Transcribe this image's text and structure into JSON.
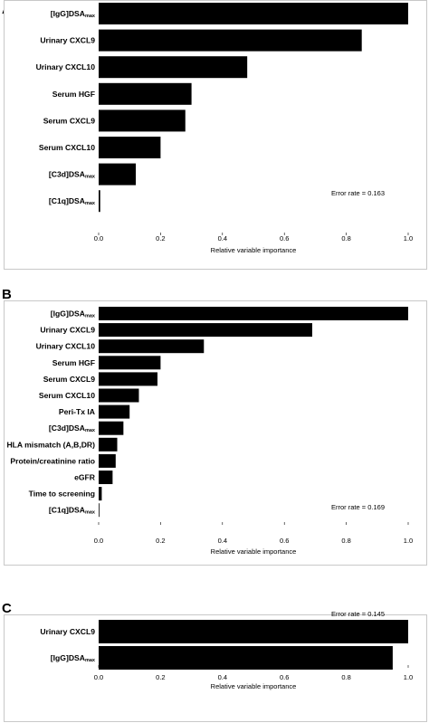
{
  "chart_data": [
    {
      "panel": "A",
      "type": "bar",
      "orientation": "horizontal",
      "categories": [
        {
          "main": "[IgG]DSA",
          "sub": "max"
        },
        {
          "main": "Urinary CXCL9",
          "sub": ""
        },
        {
          "main": "Urinary CXCL10",
          "sub": ""
        },
        {
          "main": "Serum HGF",
          "sub": ""
        },
        {
          "main": "Serum CXCL9",
          "sub": ""
        },
        {
          "main": "Serum CXCL10",
          "sub": ""
        },
        {
          "main": "[C3d]DSA",
          "sub": "max"
        },
        {
          "main": "[C1q]DSA",
          "sub": "max"
        }
      ],
      "values": [
        1.0,
        0.85,
        0.48,
        0.3,
        0.28,
        0.2,
        0.12,
        0.005
      ],
      "xlabel": "Relative variable importance",
      "xlim": [
        0,
        1
      ],
      "xticks": [
        "0.0",
        "0.2",
        "0.4",
        "0.6",
        "0.8",
        "1.0"
      ],
      "annotation": "Error rate = 0.163",
      "color": "#000000"
    },
    {
      "panel": "B",
      "type": "bar",
      "orientation": "horizontal",
      "categories": [
        {
          "main": "[IgG]DSA",
          "sub": "max"
        },
        {
          "main": "Urinary CXCL9",
          "sub": ""
        },
        {
          "main": "Urinary CXCL10",
          "sub": ""
        },
        {
          "main": "Serum HGF",
          "sub": ""
        },
        {
          "main": "Serum CXCL9",
          "sub": ""
        },
        {
          "main": "Serum CXCL10",
          "sub": ""
        },
        {
          "main": "Peri-Tx IA",
          "sub": ""
        },
        {
          "main": "[C3d]DSA",
          "sub": "max"
        },
        {
          "main": "HLA mismatch (A,B,DR)",
          "sub": ""
        },
        {
          "main": "Protein/creatinine ratio",
          "sub": ""
        },
        {
          "main": "eGFR",
          "sub": ""
        },
        {
          "main": "Time to screening",
          "sub": ""
        },
        {
          "main": "[C1q]DSA",
          "sub": "max"
        }
      ],
      "values": [
        1.0,
        0.69,
        0.34,
        0.2,
        0.19,
        0.13,
        0.1,
        0.08,
        0.06,
        0.055,
        0.045,
        0.01,
        0.002
      ],
      "xlabel": "Relative variable importance",
      "xlim": [
        0,
        1
      ],
      "xticks": [
        "0.0",
        "0.2",
        "0.4",
        "0.6",
        "0.8",
        "1.0"
      ],
      "annotation": "Error rate = 0.169",
      "color": "#000000"
    },
    {
      "panel": "C",
      "type": "bar",
      "orientation": "horizontal",
      "categories": [
        {
          "main": "Urinary CXCL9",
          "sub": ""
        },
        {
          "main": "[IgG]DSA",
          "sub": "max"
        }
      ],
      "values": [
        1.0,
        0.95
      ],
      "xlabel": "Relative variable importance",
      "xlim": [
        0,
        1
      ],
      "xticks": [
        "0.0",
        "0.2",
        "0.4",
        "0.6",
        "0.8",
        "1.0"
      ],
      "annotation": "Error rate = 0.145",
      "color": "#000000"
    }
  ]
}
